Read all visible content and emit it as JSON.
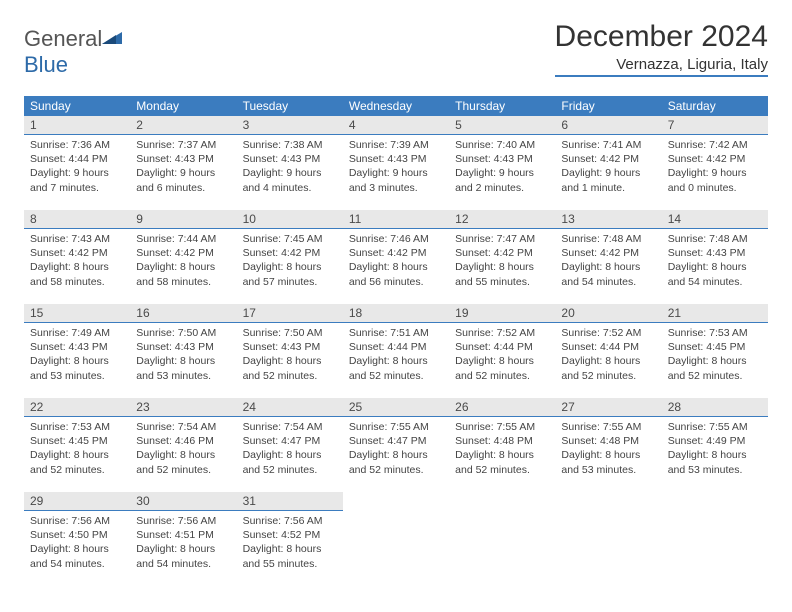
{
  "logo": {
    "word1": "General",
    "word2": "Blue"
  },
  "title": "December 2024",
  "location": "Vernazza, Liguria, Italy",
  "colors": {
    "header_blue": "#3b7cbf",
    "daynum_bg": "#e8e8e8",
    "text": "#333333"
  },
  "weekdays": [
    "Sunday",
    "Monday",
    "Tuesday",
    "Wednesday",
    "Thursday",
    "Friday",
    "Saturday"
  ],
  "days": [
    {
      "n": "1",
      "sunrise": "Sunrise: 7:36 AM",
      "sunset": "Sunset: 4:44 PM",
      "day1": "Daylight: 9 hours",
      "day2": "and 7 minutes."
    },
    {
      "n": "2",
      "sunrise": "Sunrise: 7:37 AM",
      "sunset": "Sunset: 4:43 PM",
      "day1": "Daylight: 9 hours",
      "day2": "and 6 minutes."
    },
    {
      "n": "3",
      "sunrise": "Sunrise: 7:38 AM",
      "sunset": "Sunset: 4:43 PM",
      "day1": "Daylight: 9 hours",
      "day2": "and 4 minutes."
    },
    {
      "n": "4",
      "sunrise": "Sunrise: 7:39 AM",
      "sunset": "Sunset: 4:43 PM",
      "day1": "Daylight: 9 hours",
      "day2": "and 3 minutes."
    },
    {
      "n": "5",
      "sunrise": "Sunrise: 7:40 AM",
      "sunset": "Sunset: 4:43 PM",
      "day1": "Daylight: 9 hours",
      "day2": "and 2 minutes."
    },
    {
      "n": "6",
      "sunrise": "Sunrise: 7:41 AM",
      "sunset": "Sunset: 4:42 PM",
      "day1": "Daylight: 9 hours",
      "day2": "and 1 minute."
    },
    {
      "n": "7",
      "sunrise": "Sunrise: 7:42 AM",
      "sunset": "Sunset: 4:42 PM",
      "day1": "Daylight: 9 hours",
      "day2": "and 0 minutes."
    },
    {
      "n": "8",
      "sunrise": "Sunrise: 7:43 AM",
      "sunset": "Sunset: 4:42 PM",
      "day1": "Daylight: 8 hours",
      "day2": "and 58 minutes."
    },
    {
      "n": "9",
      "sunrise": "Sunrise: 7:44 AM",
      "sunset": "Sunset: 4:42 PM",
      "day1": "Daylight: 8 hours",
      "day2": "and 58 minutes."
    },
    {
      "n": "10",
      "sunrise": "Sunrise: 7:45 AM",
      "sunset": "Sunset: 4:42 PM",
      "day1": "Daylight: 8 hours",
      "day2": "and 57 minutes."
    },
    {
      "n": "11",
      "sunrise": "Sunrise: 7:46 AM",
      "sunset": "Sunset: 4:42 PM",
      "day1": "Daylight: 8 hours",
      "day2": "and 56 minutes."
    },
    {
      "n": "12",
      "sunrise": "Sunrise: 7:47 AM",
      "sunset": "Sunset: 4:42 PM",
      "day1": "Daylight: 8 hours",
      "day2": "and 55 minutes."
    },
    {
      "n": "13",
      "sunrise": "Sunrise: 7:48 AM",
      "sunset": "Sunset: 4:42 PM",
      "day1": "Daylight: 8 hours",
      "day2": "and 54 minutes."
    },
    {
      "n": "14",
      "sunrise": "Sunrise: 7:48 AM",
      "sunset": "Sunset: 4:43 PM",
      "day1": "Daylight: 8 hours",
      "day2": "and 54 minutes."
    },
    {
      "n": "15",
      "sunrise": "Sunrise: 7:49 AM",
      "sunset": "Sunset: 4:43 PM",
      "day1": "Daylight: 8 hours",
      "day2": "and 53 minutes."
    },
    {
      "n": "16",
      "sunrise": "Sunrise: 7:50 AM",
      "sunset": "Sunset: 4:43 PM",
      "day1": "Daylight: 8 hours",
      "day2": "and 53 minutes."
    },
    {
      "n": "17",
      "sunrise": "Sunrise: 7:50 AM",
      "sunset": "Sunset: 4:43 PM",
      "day1": "Daylight: 8 hours",
      "day2": "and 52 minutes."
    },
    {
      "n": "18",
      "sunrise": "Sunrise: 7:51 AM",
      "sunset": "Sunset: 4:44 PM",
      "day1": "Daylight: 8 hours",
      "day2": "and 52 minutes."
    },
    {
      "n": "19",
      "sunrise": "Sunrise: 7:52 AM",
      "sunset": "Sunset: 4:44 PM",
      "day1": "Daylight: 8 hours",
      "day2": "and 52 minutes."
    },
    {
      "n": "20",
      "sunrise": "Sunrise: 7:52 AM",
      "sunset": "Sunset: 4:44 PM",
      "day1": "Daylight: 8 hours",
      "day2": "and 52 minutes."
    },
    {
      "n": "21",
      "sunrise": "Sunrise: 7:53 AM",
      "sunset": "Sunset: 4:45 PM",
      "day1": "Daylight: 8 hours",
      "day2": "and 52 minutes."
    },
    {
      "n": "22",
      "sunrise": "Sunrise: 7:53 AM",
      "sunset": "Sunset: 4:45 PM",
      "day1": "Daylight: 8 hours",
      "day2": "and 52 minutes."
    },
    {
      "n": "23",
      "sunrise": "Sunrise: 7:54 AM",
      "sunset": "Sunset: 4:46 PM",
      "day1": "Daylight: 8 hours",
      "day2": "and 52 minutes."
    },
    {
      "n": "24",
      "sunrise": "Sunrise: 7:54 AM",
      "sunset": "Sunset: 4:47 PM",
      "day1": "Daylight: 8 hours",
      "day2": "and 52 minutes."
    },
    {
      "n": "25",
      "sunrise": "Sunrise: 7:55 AM",
      "sunset": "Sunset: 4:47 PM",
      "day1": "Daylight: 8 hours",
      "day2": "and 52 minutes."
    },
    {
      "n": "26",
      "sunrise": "Sunrise: 7:55 AM",
      "sunset": "Sunset: 4:48 PM",
      "day1": "Daylight: 8 hours",
      "day2": "and 52 minutes."
    },
    {
      "n": "27",
      "sunrise": "Sunrise: 7:55 AM",
      "sunset": "Sunset: 4:48 PM",
      "day1": "Daylight: 8 hours",
      "day2": "and 53 minutes."
    },
    {
      "n": "28",
      "sunrise": "Sunrise: 7:55 AM",
      "sunset": "Sunset: 4:49 PM",
      "day1": "Daylight: 8 hours",
      "day2": "and 53 minutes."
    },
    {
      "n": "29",
      "sunrise": "Sunrise: 7:56 AM",
      "sunset": "Sunset: 4:50 PM",
      "day1": "Daylight: 8 hours",
      "day2": "and 54 minutes."
    },
    {
      "n": "30",
      "sunrise": "Sunrise: 7:56 AM",
      "sunset": "Sunset: 4:51 PM",
      "day1": "Daylight: 8 hours",
      "day2": "and 54 minutes."
    },
    {
      "n": "31",
      "sunrise": "Sunrise: 7:56 AM",
      "sunset": "Sunset: 4:52 PM",
      "day1": "Daylight: 8 hours",
      "day2": "and 55 minutes."
    }
  ]
}
